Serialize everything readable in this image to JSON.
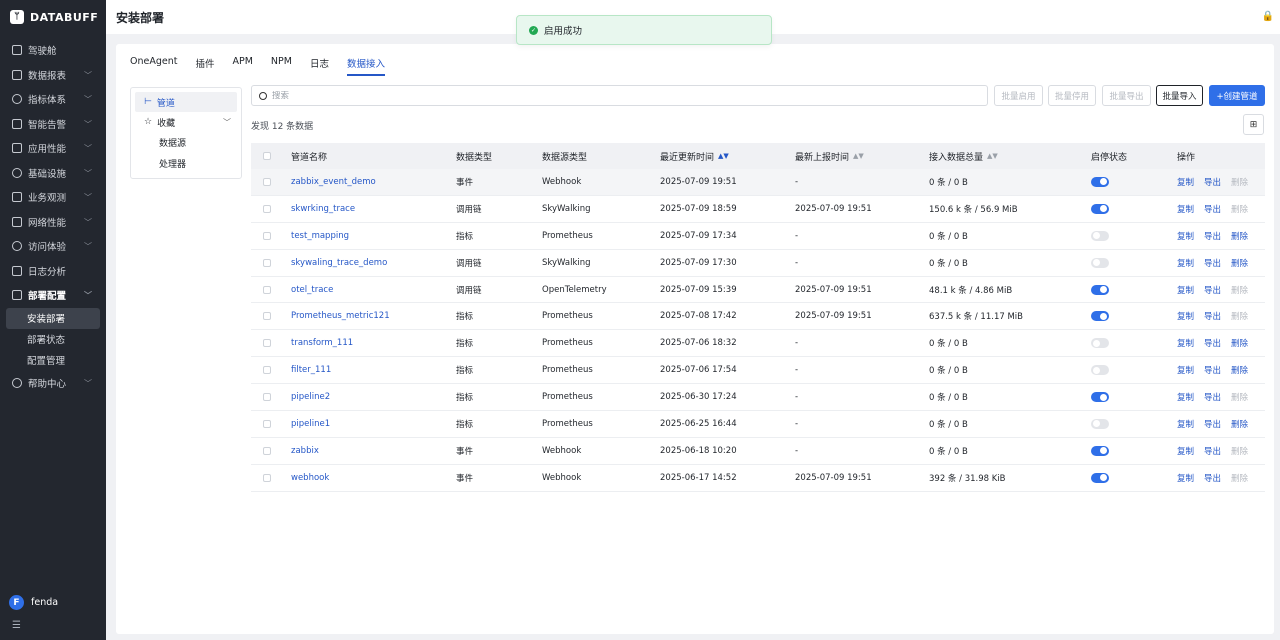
{
  "app": {
    "logo_mark": "ᛘ",
    "logo_text": "DATABUFF"
  },
  "sidebar": {
    "items": [
      {
        "label": "驾驶舱",
        "icon": "monitor-icon",
        "chevron": false
      },
      {
        "label": "数据报表",
        "icon": "report-icon",
        "chevron": true
      },
      {
        "label": "指标体系",
        "icon": "metrics-icon",
        "chevron": true
      },
      {
        "label": "智能告警",
        "icon": "alert-icon",
        "chevron": true
      },
      {
        "label": "应用性能",
        "icon": "app-icon",
        "chevron": true
      },
      {
        "label": "基础设施",
        "icon": "infra-icon",
        "chevron": true
      },
      {
        "label": "业务观测",
        "icon": "business-icon",
        "chevron": true
      },
      {
        "label": "网络性能",
        "icon": "network-icon",
        "chevron": true
      },
      {
        "label": "访问体验",
        "icon": "experience-icon",
        "chevron": true
      },
      {
        "label": "日志分析",
        "icon": "log-icon",
        "chevron": false
      },
      {
        "label": "部署配置",
        "icon": "deploy-icon",
        "chevron": true,
        "open": true
      }
    ],
    "sub_items": [
      {
        "label": "安装部署",
        "active": true
      },
      {
        "label": "部署状态",
        "active": false
      },
      {
        "label": "配置管理",
        "active": false
      }
    ],
    "help": {
      "label": "帮助中心",
      "icon": "help-icon"
    },
    "user": {
      "initial": "F",
      "name": "fenda"
    },
    "collapse_glyph": "☰"
  },
  "header": {
    "title": "安装部署",
    "lock_glyph": "🔒"
  },
  "toast": {
    "icon_glyph": "✓",
    "text": "启用成功"
  },
  "tabs": [
    {
      "label": "OneAgent",
      "active": false
    },
    {
      "label": "插件",
      "active": false
    },
    {
      "label": "APM",
      "active": false
    },
    {
      "label": "NPM",
      "active": false
    },
    {
      "label": "日志",
      "active": false
    },
    {
      "label": "数据接入",
      "active": true
    }
  ],
  "tree": {
    "pipeline": {
      "icon_glyph": "⊢",
      "label": "管道"
    },
    "favorites": {
      "icon_glyph": "☆",
      "label": "收藏",
      "chevron": "﹀"
    },
    "children": [
      "数据源",
      "处理器"
    ]
  },
  "search": {
    "placeholder": "搜索",
    "value": ""
  },
  "toolbar": {
    "batch_enable": "批量启用",
    "batch_disable": "批量停用",
    "batch_export": "批量导出",
    "batch_import": "批量导入",
    "create": "+创建管道",
    "columns_glyph": "⊞"
  },
  "count_text": "发现 12 条数据",
  "table": {
    "headers": {
      "name": "管道名称",
      "data_type": "数据类型",
      "source_type": "数据源类型",
      "updated": "最近更新时间",
      "reported": "最新上报时间",
      "total": "接入数据总量",
      "status": "启停状态",
      "ops": "操作"
    },
    "sort_glyphs": {
      "updated": "▲▼",
      "reported": "▲▼",
      "total": "▲▼"
    },
    "op_labels": {
      "copy": "复制",
      "export": "导出",
      "delete": "删除"
    },
    "rows": [
      {
        "name": "zabbix_event_demo",
        "type": "事件",
        "source": "Webhook",
        "updated": "2025-07-09 19:51",
        "reported": "-",
        "total": "0 条 / 0 B",
        "enabled": true
      },
      {
        "name": "skwrking_trace",
        "type": "调用链",
        "source": "SkyWalking",
        "updated": "2025-07-09 18:59",
        "reported": "2025-07-09 19:51",
        "total": "150.6 k 条 / 56.9 MiB",
        "enabled": true
      },
      {
        "name": "test_mapping",
        "type": "指标",
        "source": "Prometheus",
        "updated": "2025-07-09 17:34",
        "reported": "-",
        "total": "0 条 / 0 B",
        "enabled": false
      },
      {
        "name": "skywaling_trace_demo",
        "type": "调用链",
        "source": "SkyWalking",
        "updated": "2025-07-09 17:30",
        "reported": "-",
        "total": "0 条 / 0 B",
        "enabled": false
      },
      {
        "name": "otel_trace",
        "type": "调用链",
        "source": "OpenTelemetry",
        "updated": "2025-07-09 15:39",
        "reported": "2025-07-09 19:51",
        "total": "48.1 k 条 / 4.86 MiB",
        "enabled": true
      },
      {
        "name": "Prometheus_metric121",
        "type": "指标",
        "source": "Prometheus",
        "updated": "2025-07-08 17:42",
        "reported": "2025-07-09 19:51",
        "total": "637.5 k 条 / 11.17 MiB",
        "enabled": true
      },
      {
        "name": "transform_111",
        "type": "指标",
        "source": "Prometheus",
        "updated": "2025-07-06 18:32",
        "reported": "-",
        "total": "0 条 / 0 B",
        "enabled": false
      },
      {
        "name": "filter_111",
        "type": "指标",
        "source": "Prometheus",
        "updated": "2025-07-06 17:54",
        "reported": "-",
        "total": "0 条 / 0 B",
        "enabled": false
      },
      {
        "name": "pipeline2",
        "type": "指标",
        "source": "Prometheus",
        "updated": "2025-06-30 17:24",
        "reported": "-",
        "total": "0 条 / 0 B",
        "enabled": true
      },
      {
        "name": "pipeline1",
        "type": "指标",
        "source": "Prometheus",
        "updated": "2025-06-25 16:44",
        "reported": "-",
        "total": "0 条 / 0 B",
        "enabled": false
      },
      {
        "name": "zabbix",
        "type": "事件",
        "source": "Webhook",
        "updated": "2025-06-18 10:20",
        "reported": "-",
        "total": "0 条 / 0 B",
        "enabled": true
      },
      {
        "name": "webhook",
        "type": "事件",
        "source": "Webhook",
        "updated": "2025-06-17 14:52",
        "reported": "2025-07-09 19:51",
        "total": "392 条 / 31.98 KiB",
        "enabled": true
      }
    ]
  },
  "colors": {
    "accent": "#2f6fe8",
    "link": "#2557c7",
    "sidebar_bg": "#23272f",
    "toast_bg": "#e8f7ee"
  }
}
